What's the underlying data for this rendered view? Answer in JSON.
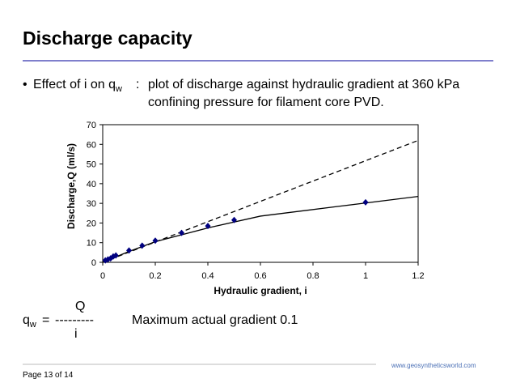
{
  "header": {
    "title": "Discharge capacity"
  },
  "bullet": {
    "lead": "Effect of i on q",
    "lead_sub": "w",
    "separator": ":",
    "line1": "plot of discharge against hydraulic gradient at 360 kPa",
    "line2": "confining pressure for filament core PVD."
  },
  "chart_data": {
    "type": "scatter",
    "x_label": "Hydraulic gradient, i",
    "y_label": "Discharge,Q (ml/s)",
    "xlim": [
      0,
      1.2
    ],
    "xticks": [
      0,
      0.2,
      0.4,
      0.6,
      0.8,
      1,
      1.2
    ],
    "ylim": [
      0,
      70
    ],
    "yticks": [
      0,
      10,
      20,
      30,
      40,
      50,
      60,
      70
    ],
    "series": [
      {
        "style": "marker",
        "color": "#000080",
        "x": [
          0.01,
          0.02,
          0.03,
          0.04,
          0.05,
          0.1,
          0.15,
          0.2,
          0.3,
          0.4,
          0.5,
          1.0
        ],
        "values": [
          1,
          1.5,
          2,
          3,
          3.5,
          6,
          8.5,
          11,
          15,
          18.5,
          21.5,
          30.5
        ]
      },
      {
        "style": "solid",
        "color": "#000000",
        "x": [
          0,
          0.1,
          0.2,
          0.4,
          0.6,
          0.9,
          1.2
        ],
        "values": [
          0,
          5.5,
          10.5,
          17.5,
          23.5,
          28.5,
          33.5
        ]
      },
      {
        "style": "dashed",
        "color": "#000000",
        "x": [
          0,
          1.2
        ],
        "values": [
          0,
          62
        ]
      }
    ]
  },
  "formula": {
    "lhs": "q",
    "lhs_sub": "w",
    "equals": "=",
    "numerator": "Q",
    "bar": "---------",
    "denominator": "i"
  },
  "note": "Maximum actual gradient 0.1",
  "footer": {
    "website": "www.geosyntheticsworld.com",
    "page": "Page 13 of 14"
  }
}
